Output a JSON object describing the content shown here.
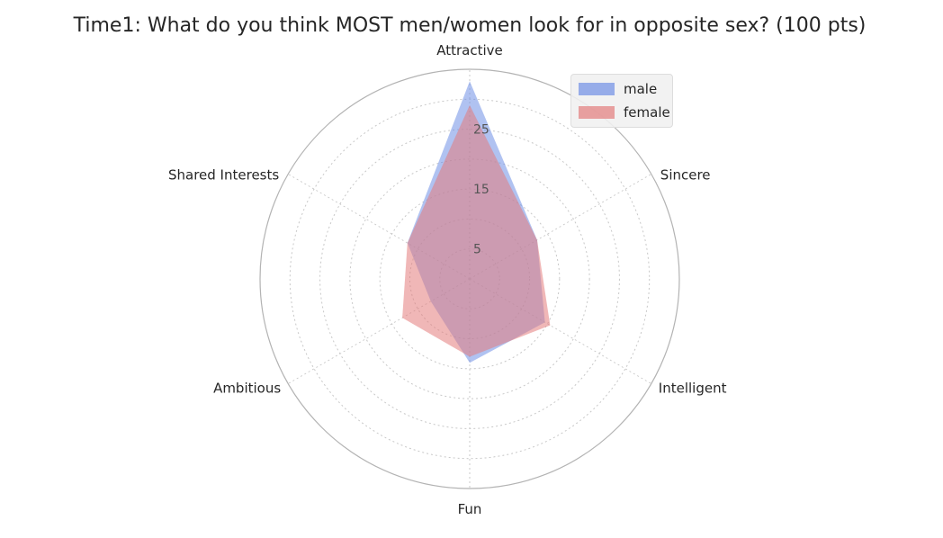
{
  "chart_data": {
    "type": "radar",
    "title": "Time1: What do you think MOST men/women look for in opposite sex? (100 pts)",
    "categories": [
      "Attractive",
      "Sincere",
      "Intelligent",
      "Fun",
      "Ambitious",
      "Shared Interests"
    ],
    "rlim": [
      0,
      35
    ],
    "r_ticks": [
      5,
      15,
      25
    ],
    "grid": true,
    "legend_position": "top-right",
    "series": [
      {
        "name": "male",
        "values": [
          33,
          13,
          14.5,
          14,
          7.5,
          12
        ],
        "color": "#6f8fe6"
      },
      {
        "name": "female",
        "values": [
          29,
          13,
          15.5,
          13,
          13,
          12
        ],
        "color": "#e37c7c"
      }
    ]
  }
}
